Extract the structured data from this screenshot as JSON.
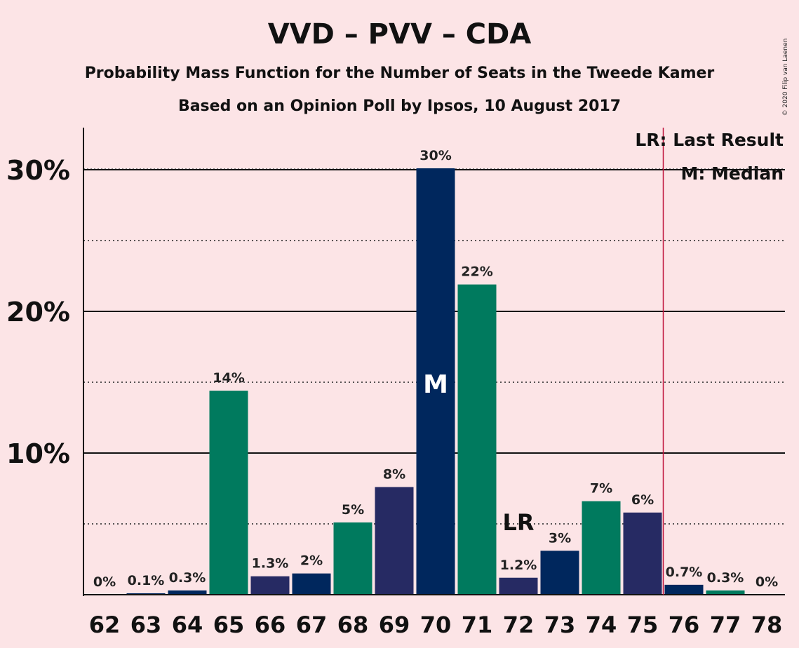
{
  "title": "VVD – PVV – CDA",
  "subtitle": "Probability Mass Function for the Number of Seats in the Tweede Kamer",
  "subtitle2": "Based on an Opinion Poll by Ipsos, 10 August 2017",
  "copyright": "© 2020 Filip van Laenen",
  "chart_data": {
    "type": "bar",
    "categories": [
      "62",
      "63",
      "64",
      "65",
      "66",
      "67",
      "68",
      "69",
      "70",
      "71",
      "72",
      "73",
      "74",
      "75",
      "76",
      "77",
      "78"
    ],
    "values": [
      0,
      0.1,
      0.3,
      14.4,
      1.3,
      1.5,
      5.1,
      7.6,
      30.1,
      21.9,
      1.2,
      3.1,
      6.6,
      5.8,
      0.7,
      0.3,
      0
    ],
    "value_labels": [
      "0%",
      "0.1%",
      "0.3%",
      "14%",
      "1.3%",
      "2%",
      "5%",
      "8%",
      "30%",
      "22%",
      "1.2%",
      "3%",
      "7%",
      "6%",
      "0.7%",
      "0.3%",
      "0%"
    ],
    "bar_colors": [
      "#00275D",
      "#00275D",
      "#00275D",
      "#007A5E",
      "#262A63",
      "#00275D",
      "#007A5E",
      "#262A63",
      "#00275D",
      "#007A5E",
      "#262A63",
      "#00275D",
      "#007A5E",
      "#262A63",
      "#00275D",
      "#007A5E",
      "#262A63"
    ],
    "ylim": [
      0,
      33
    ],
    "yticks": [
      10,
      20,
      30
    ],
    "ytick_labels": [
      "10%",
      "20%",
      "30%"
    ],
    "minor_gridlines": [
      5,
      15,
      25
    ],
    "median_seat": "70",
    "median_marker": "M",
    "last_result_seat": "72",
    "last_result_marker": "LR",
    "last_result_line_between": [
      "75",
      "76"
    ],
    "last_result_line_color": "#C0143C",
    "legend": [
      "LR: Last Result",
      "M: Median"
    ],
    "legend_position": "top-right"
  }
}
